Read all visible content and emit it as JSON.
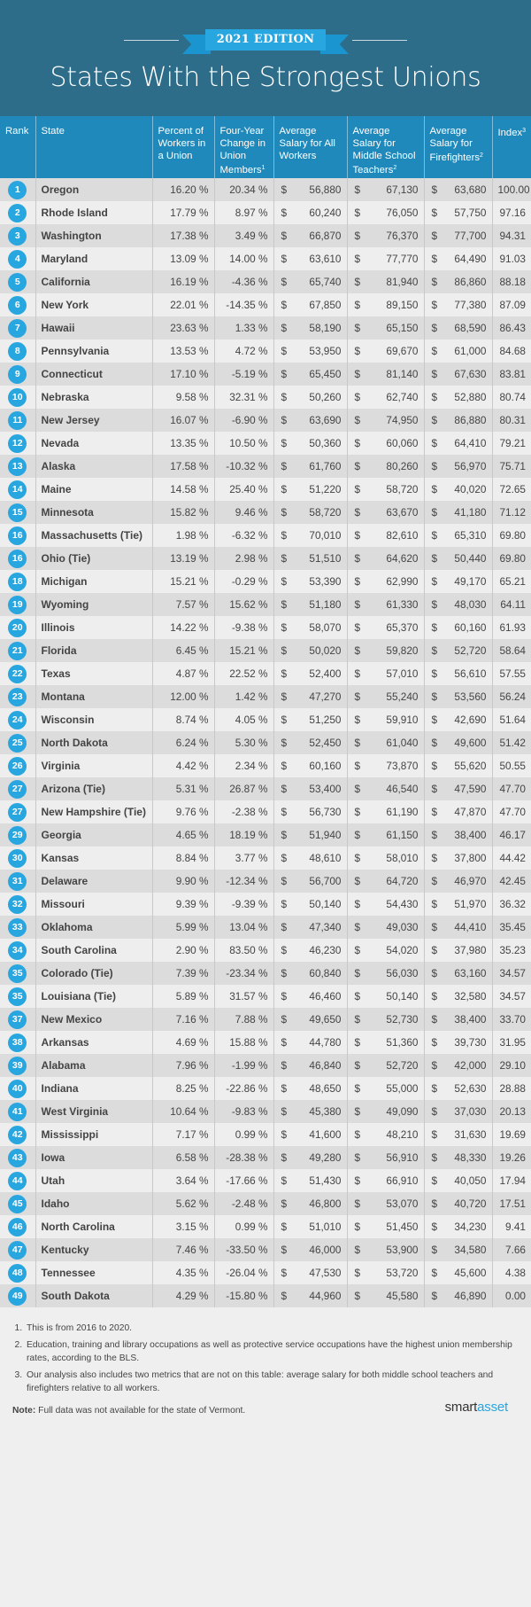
{
  "header": {
    "edition": "2021 EDITION",
    "title": "States With the Strongest Unions"
  },
  "colors": {
    "header_bg": "#2d6d8a",
    "table_header_bg": "#2089bb",
    "accent": "#27a6e0",
    "row_odd": "#dcdcdc",
    "row_even": "#eeeeee"
  },
  "table": {
    "columns": {
      "rank": "Rank",
      "state": "State",
      "pct": "Percent of Workers in a Union",
      "chg": "Four-Year Change in Union Members",
      "chg_sup": "1",
      "sal": "Average Salary for All Workers",
      "teach": "Average Salary for Middle School Teachers",
      "teach_sup": "2",
      "fire": "Average Salary for Firefighters",
      "fire_sup": "2",
      "idx": "Index",
      "idx_sup": "3"
    },
    "rows": [
      {
        "rank": "1",
        "state": "Oregon",
        "pct": "16.20 %",
        "chg": "20.34 %",
        "sal": "56,880",
        "teach": "67,130",
        "fire": "63,680",
        "idx": "100.00"
      },
      {
        "rank": "2",
        "state": "Rhode Island",
        "pct": "17.79 %",
        "chg": "8.97 %",
        "sal": "60,240",
        "teach": "76,050",
        "fire": "57,750",
        "idx": "97.16"
      },
      {
        "rank": "3",
        "state": "Washington",
        "pct": "17.38 %",
        "chg": "3.49 %",
        "sal": "66,870",
        "teach": "76,370",
        "fire": "77,700",
        "idx": "94.31"
      },
      {
        "rank": "4",
        "state": "Maryland",
        "pct": "13.09 %",
        "chg": "14.00 %",
        "sal": "63,610",
        "teach": "77,770",
        "fire": "64,490",
        "idx": "91.03"
      },
      {
        "rank": "5",
        "state": "California",
        "pct": "16.19 %",
        "chg": "-4.36 %",
        "sal": "65,740",
        "teach": "81,940",
        "fire": "86,860",
        "idx": "88.18"
      },
      {
        "rank": "6",
        "state": "New York",
        "pct": "22.01 %",
        "chg": "-14.35 %",
        "sal": "67,850",
        "teach": "89,150",
        "fire": "77,380",
        "idx": "87.09"
      },
      {
        "rank": "7",
        "state": "Hawaii",
        "pct": "23.63 %",
        "chg": "1.33 %",
        "sal": "58,190",
        "teach": "65,150",
        "fire": "68,590",
        "idx": "86.43"
      },
      {
        "rank": "8",
        "state": "Pennsylvania",
        "pct": "13.53 %",
        "chg": "4.72 %",
        "sal": "53,950",
        "teach": "69,670",
        "fire": "61,000",
        "idx": "84.68"
      },
      {
        "rank": "9",
        "state": "Connecticut",
        "pct": "17.10 %",
        "chg": "-5.19 %",
        "sal": "65,450",
        "teach": "81,140",
        "fire": "67,630",
        "idx": "83.81"
      },
      {
        "rank": "10",
        "state": "Nebraska",
        "pct": "9.58 %",
        "chg": "32.31 %",
        "sal": "50,260",
        "teach": "62,740",
        "fire": "52,880",
        "idx": "80.74"
      },
      {
        "rank": "11",
        "state": "New Jersey",
        "pct": "16.07 %",
        "chg": "-6.90 %",
        "sal": "63,690",
        "teach": "74,950",
        "fire": "86,880",
        "idx": "80.31"
      },
      {
        "rank": "12",
        "state": "Nevada",
        "pct": "13.35 %",
        "chg": "10.50 %",
        "sal": "50,360",
        "teach": "60,060",
        "fire": "64,410",
        "idx": "79.21"
      },
      {
        "rank": "13",
        "state": "Alaska",
        "pct": "17.58 %",
        "chg": "-10.32 %",
        "sal": "61,760",
        "teach": "80,260",
        "fire": "56,970",
        "idx": "75.71"
      },
      {
        "rank": "14",
        "state": "Maine",
        "pct": "14.58 %",
        "chg": "25.40 %",
        "sal": "51,220",
        "teach": "58,720",
        "fire": "40,020",
        "idx": "72.65"
      },
      {
        "rank": "15",
        "state": "Minnesota",
        "pct": "15.82 %",
        "chg": "9.46 %",
        "sal": "58,720",
        "teach": "63,670",
        "fire": "41,180",
        "idx": "71.12"
      },
      {
        "rank": "16",
        "state": "Massachusetts (Tie)",
        "pct": "1.98 %",
        "chg": "-6.32 %",
        "sal": "70,010",
        "teach": "82,610",
        "fire": "65,310",
        "idx": "69.80"
      },
      {
        "rank": "16",
        "state": "Ohio (Tie)",
        "pct": "13.19 %",
        "chg": "2.98 %",
        "sal": "51,510",
        "teach": "64,620",
        "fire": "50,440",
        "idx": "69.80"
      },
      {
        "rank": "18",
        "state": "Michigan",
        "pct": "15.21 %",
        "chg": "-0.29 %",
        "sal": "53,390",
        "teach": "62,990",
        "fire": "49,170",
        "idx": "65.21"
      },
      {
        "rank": "19",
        "state": "Wyoming",
        "pct": "7.57 %",
        "chg": "15.62 %",
        "sal": "51,180",
        "teach": "61,330",
        "fire": "48,030",
        "idx": "64.11"
      },
      {
        "rank": "20",
        "state": "Illinois",
        "pct": "14.22 %",
        "chg": "-9.38 %",
        "sal": "58,070",
        "teach": "65,370",
        "fire": "60,160",
        "idx": "61.93"
      },
      {
        "rank": "21",
        "state": "Florida",
        "pct": "6.45 %",
        "chg": "15.21 %",
        "sal": "50,020",
        "teach": "59,820",
        "fire": "52,720",
        "idx": "58.64"
      },
      {
        "rank": "22",
        "state": "Texas",
        "pct": "4.87 %",
        "chg": "22.52 %",
        "sal": "52,400",
        "teach": "57,010",
        "fire": "56,610",
        "idx": "57.55"
      },
      {
        "rank": "23",
        "state": "Montana",
        "pct": "12.00 %",
        "chg": "1.42 %",
        "sal": "47,270",
        "teach": "55,240",
        "fire": "53,560",
        "idx": "56.24"
      },
      {
        "rank": "24",
        "state": "Wisconsin",
        "pct": "8.74 %",
        "chg": "4.05 %",
        "sal": "51,250",
        "teach": "59,910",
        "fire": "42,690",
        "idx": "51.64"
      },
      {
        "rank": "25",
        "state": "North Dakota",
        "pct": "6.24 %",
        "chg": "5.30 %",
        "sal": "52,450",
        "teach": "61,040",
        "fire": "49,600",
        "idx": "51.42"
      },
      {
        "rank": "26",
        "state": "Virginia",
        "pct": "4.42 %",
        "chg": "2.34 %",
        "sal": "60,160",
        "teach": "73,870",
        "fire": "55,620",
        "idx": "50.55"
      },
      {
        "rank": "27",
        "state": "Arizona (Tie)",
        "pct": "5.31 %",
        "chg": "26.87 %",
        "sal": "53,400",
        "teach": "46,540",
        "fire": "47,590",
        "idx": "47.70"
      },
      {
        "rank": "27",
        "state": "New Hampshire (Tie)",
        "pct": "9.76 %",
        "chg": "-2.38 %",
        "sal": "56,730",
        "teach": "61,190",
        "fire": "47,870",
        "idx": "47.70"
      },
      {
        "rank": "29",
        "state": "Georgia",
        "pct": "4.65 %",
        "chg": "18.19 %",
        "sal": "51,940",
        "teach": "61,150",
        "fire": "38,400",
        "idx": "46.17"
      },
      {
        "rank": "30",
        "state": "Kansas",
        "pct": "8.84 %",
        "chg": "3.77 %",
        "sal": "48,610",
        "teach": "58,010",
        "fire": "37,800",
        "idx": "44.42"
      },
      {
        "rank": "31",
        "state": "Delaware",
        "pct": "9.90 %",
        "chg": "-12.34 %",
        "sal": "56,700",
        "teach": "64,720",
        "fire": "46,970",
        "idx": "42.45"
      },
      {
        "rank": "32",
        "state": "Missouri",
        "pct": "9.39 %",
        "chg": "-9.39 %",
        "sal": "50,140",
        "teach": "54,430",
        "fire": "51,970",
        "idx": "36.32"
      },
      {
        "rank": "33",
        "state": "Oklahoma",
        "pct": "5.99 %",
        "chg": "13.04 %",
        "sal": "47,340",
        "teach": "49,030",
        "fire": "44,410",
        "idx": "35.45"
      },
      {
        "rank": "34",
        "state": "South Carolina",
        "pct": "2.90 %",
        "chg": "83.50 %",
        "sal": "46,230",
        "teach": "54,020",
        "fire": "37,980",
        "idx": "35.23"
      },
      {
        "rank": "35",
        "state": "Colorado (Tie)",
        "pct": "7.39 %",
        "chg": "-23.34 %",
        "sal": "60,840",
        "teach": "56,030",
        "fire": "63,160",
        "idx": "34.57"
      },
      {
        "rank": "35",
        "state": "Louisiana (Tie)",
        "pct": "5.89 %",
        "chg": "31.57 %",
        "sal": "46,460",
        "teach": "50,140",
        "fire": "32,580",
        "idx": "34.57"
      },
      {
        "rank": "37",
        "state": "New Mexico",
        "pct": "7.16 %",
        "chg": "7.88 %",
        "sal": "49,650",
        "teach": "52,730",
        "fire": "38,400",
        "idx": "33.70"
      },
      {
        "rank": "38",
        "state": "Arkansas",
        "pct": "4.69 %",
        "chg": "15.88 %",
        "sal": "44,780",
        "teach": "51,360",
        "fire": "39,730",
        "idx": "31.95"
      },
      {
        "rank": "39",
        "state": "Alabama",
        "pct": "7.96 %",
        "chg": "-1.99 %",
        "sal": "46,840",
        "teach": "52,720",
        "fire": "42,000",
        "idx": "29.10"
      },
      {
        "rank": "40",
        "state": "Indiana",
        "pct": "8.25 %",
        "chg": "-22.86 %",
        "sal": "48,650",
        "teach": "55,000",
        "fire": "52,630",
        "idx": "28.88"
      },
      {
        "rank": "41",
        "state": "West Virginia",
        "pct": "10.64 %",
        "chg": "-9.83 %",
        "sal": "45,380",
        "teach": "49,090",
        "fire": "37,030",
        "idx": "20.13"
      },
      {
        "rank": "42",
        "state": "Mississippi",
        "pct": "7.17 %",
        "chg": "0.99 %",
        "sal": "41,600",
        "teach": "48,210",
        "fire": "31,630",
        "idx": "19.69"
      },
      {
        "rank": "43",
        "state": "Iowa",
        "pct": "6.58 %",
        "chg": "-28.38 %",
        "sal": "49,280",
        "teach": "56,910",
        "fire": "48,330",
        "idx": "19.26"
      },
      {
        "rank": "44",
        "state": "Utah",
        "pct": "3.64 %",
        "chg": "-17.66 %",
        "sal": "51,430",
        "teach": "66,910",
        "fire": "40,050",
        "idx": "17.94"
      },
      {
        "rank": "45",
        "state": "Idaho",
        "pct": "5.62 %",
        "chg": "-2.48 %",
        "sal": "46,800",
        "teach": "53,070",
        "fire": "40,720",
        "idx": "17.51"
      },
      {
        "rank": "46",
        "state": "North Carolina",
        "pct": "3.15 %",
        "chg": "0.99 %",
        "sal": "51,010",
        "teach": "51,450",
        "fire": "34,230",
        "idx": "9.41"
      },
      {
        "rank": "47",
        "state": "Kentucky",
        "pct": "7.46 %",
        "chg": "-33.50 %",
        "sal": "46,000",
        "teach": "53,900",
        "fire": "34,580",
        "idx": "7.66"
      },
      {
        "rank": "48",
        "state": "Tennessee",
        "pct": "4.35 %",
        "chg": "-26.04 %",
        "sal": "47,530",
        "teach": "53,720",
        "fire": "45,600",
        "idx": "4.38"
      },
      {
        "rank": "49",
        "state": "South Dakota",
        "pct": "4.29 %",
        "chg": "-15.80 %",
        "sal": "44,960",
        "teach": "45,580",
        "fire": "46,890",
        "idx": "0.00"
      }
    ],
    "currency_symbol": "$"
  },
  "footnotes": [
    "This is from 2016 to 2020.",
    "Education, training and library occupations as well as protective service occupations have the highest union membership rates, according to the BLS.",
    "Our analysis also includes two metrics that are not on this table: average salary for both middle school teachers and firefighters relative to all workers."
  ],
  "note": {
    "label": "Note:",
    "text": " Full data was not available for the state of Vermont."
  },
  "brand": {
    "part1": "smart",
    "part2": "asset"
  }
}
